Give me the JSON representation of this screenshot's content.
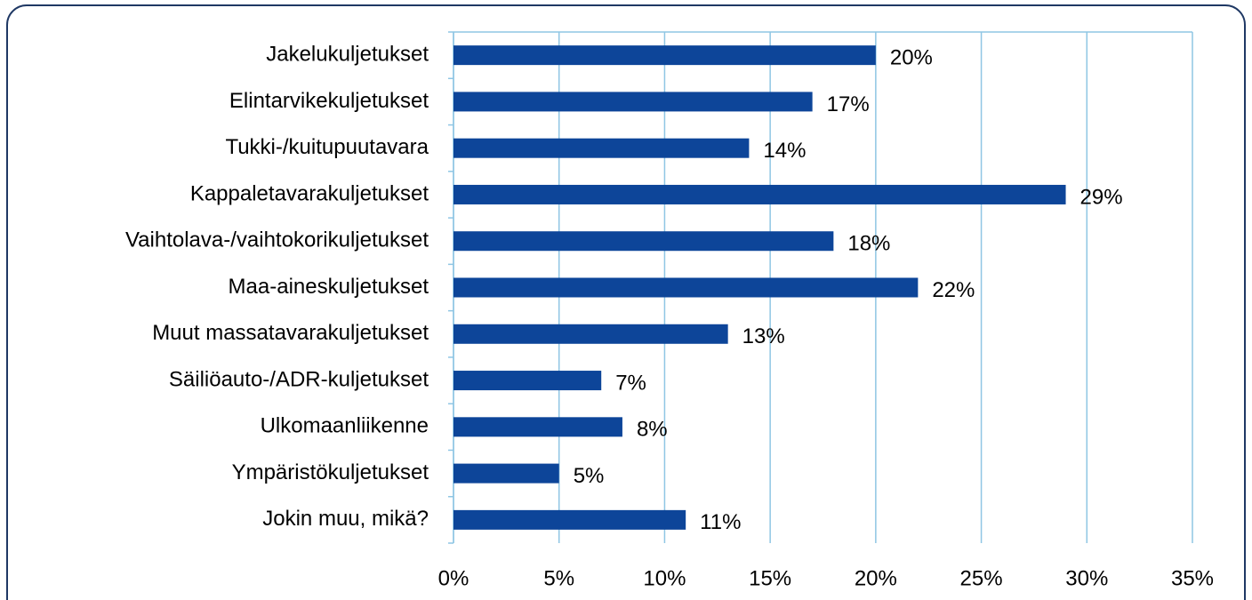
{
  "chart_data": {
    "type": "bar",
    "orientation": "horizontal",
    "categories": [
      "Jakelukuljetukset",
      "Elintarvikekuljetukset",
      "Tukki-/kuitupuutavara",
      "Kappaletavarakuljetukset",
      "Vaihtolava-/vaihtokorikuljetukset",
      "Maa-aineskuljetukset",
      "Muut massatavarakuljetukset",
      "Säiliöauto-/ADR-kuljetukset",
      "Ulkomaanliikenne",
      "Ympäristökuljetukset",
      "Jokin muu, mikä?"
    ],
    "values": [
      20,
      17,
      14,
      29,
      18,
      22,
      13,
      7,
      8,
      5,
      11
    ],
    "value_labels": [
      "20%",
      "17%",
      "14%",
      "29%",
      "18%",
      "22%",
      "13%",
      "7%",
      "8%",
      "5%",
      "11%"
    ],
    "color": "#0d4599",
    "xlim": [
      0,
      35
    ],
    "xticks": [
      {
        "value": 0,
        "label": "0%"
      },
      {
        "value": 5,
        "label": "5%"
      },
      {
        "value": 10,
        "label": "10%"
      },
      {
        "value": 15,
        "label": "15%"
      },
      {
        "value": 20,
        "label": "20%"
      },
      {
        "value": 25,
        "label": "25%"
      },
      {
        "value": 30,
        "label": "30%"
      },
      {
        "value": 35,
        "label": "35%"
      }
    ],
    "grid": true
  }
}
